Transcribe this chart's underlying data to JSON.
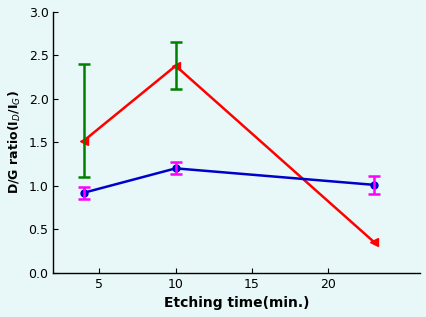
{
  "x": [
    4,
    10,
    23
  ],
  "red_y": [
    1.52,
    2.38,
    0.35
  ],
  "red_color": "#ff0000",
  "red_err_color": "#008000",
  "red_green_err_lower": [
    0.42,
    0.27
  ],
  "red_green_err_upper": [
    0.88,
    0.27
  ],
  "blue_y": [
    0.92,
    1.2,
    1.01
  ],
  "blue_color": "#0000cc",
  "blue_err_color": "#ff00ff",
  "blue_err_lower": [
    0.07,
    0.07,
    0.1
  ],
  "blue_err_upper": [
    0.07,
    0.07,
    0.1
  ],
  "xlabel": "Etching time(min.)",
  "ylabel": "D/G ratio(I$_{D}$/I$_{G}$)",
  "xlim": [
    2,
    26
  ],
  "ylim": [
    0.0,
    3.0
  ],
  "xticks": [
    5,
    10,
    15,
    20
  ],
  "yticks": [
    0.0,
    0.5,
    1.0,
    1.5,
    2.0,
    2.5,
    3.0
  ],
  "bg_color": "#e8f8f8",
  "marker_size": 4,
  "linewidth": 1.8
}
